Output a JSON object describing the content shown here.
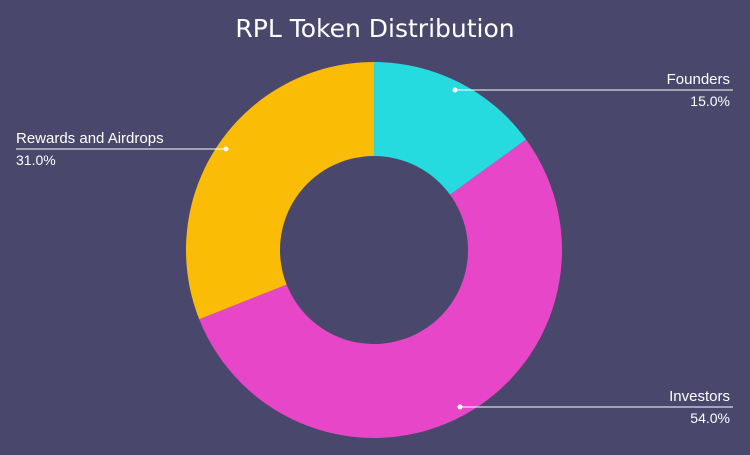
{
  "chart_data": {
    "type": "pie",
    "title": "RPL Token Distribution",
    "donut": true,
    "start_angle_deg": 0,
    "direction": "clockwise",
    "slices": [
      {
        "label": "Founders",
        "value": 15.0,
        "display": "15.0%",
        "color": "#26dbdf"
      },
      {
        "label": "Investors",
        "value": 54.0,
        "display": "54.0%",
        "color": "#e646c7"
      },
      {
        "label": "Rewards and Airdrops",
        "value": 31.0,
        "display": "31.0%",
        "color": "#fbbc05"
      }
    ],
    "legend": "none",
    "background": "#4a476d"
  }
}
